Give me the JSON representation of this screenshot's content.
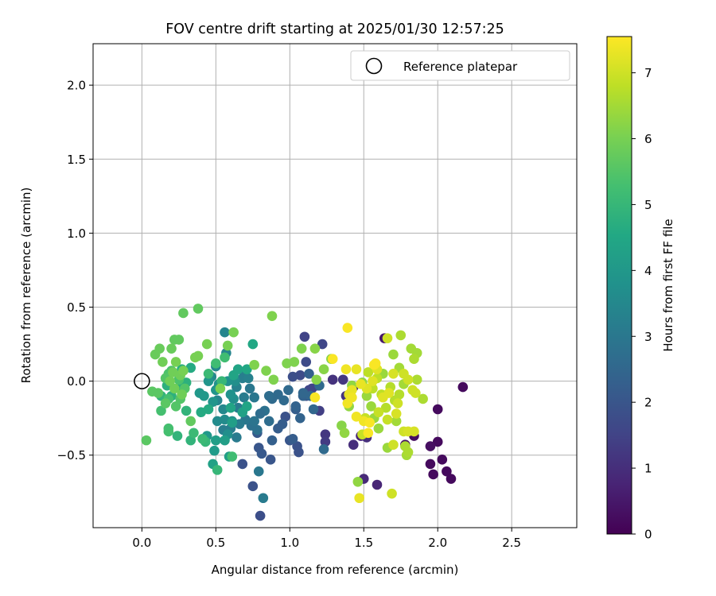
{
  "chart_data": {
    "type": "scatter",
    "title": "FOV centre drift starting at 2025/01/30 12:57:25",
    "xlabel": "Angular distance from reference (arcmin)",
    "ylabel": "Rotation from reference (arcmin)",
    "colorbar_label": "Hours from first FF file",
    "xlim": [
      -0.33,
      2.94
    ],
    "ylim": [
      -0.99,
      2.28
    ],
    "xticks": [
      0.0,
      0.5,
      1.0,
      1.5,
      2.0,
      2.5
    ],
    "xtick_labels": [
      "0.0",
      "0.5",
      "1.0",
      "1.5",
      "2.0",
      "2.5"
    ],
    "yticks": [
      -0.5,
      0.0,
      0.5,
      1.0,
      1.5,
      2.0
    ],
    "ytick_labels": [
      "−0.5",
      "0.0",
      "0.5",
      "1.0",
      "1.5",
      "2.0"
    ],
    "clim": [
      0,
      7.55
    ],
    "cticks": [
      0,
      1,
      2,
      3,
      4,
      5,
      6,
      7
    ],
    "ctick_labels": [
      "0",
      "1",
      "2",
      "3",
      "4",
      "5",
      "6",
      "7"
    ],
    "colormap": "viridis",
    "grid": true,
    "legend": {
      "position": "top-right",
      "label": "Reference platepar",
      "marker": "open-circle"
    },
    "reference_point": {
      "x": 0.0,
      "y": 0.0
    },
    "points": [
      [
        2.17,
        -0.04,
        0.2
      ],
      [
        2.0,
        -0.19,
        0.2
      ],
      [
        2.0,
        -0.41,
        0.2
      ],
      [
        1.95,
        -0.56,
        0.2
      ],
      [
        1.97,
        -0.63,
        0.2
      ],
      [
        2.03,
        -0.53,
        0.2
      ],
      [
        2.06,
        -0.61,
        0.2
      ],
      [
        2.09,
        -0.66,
        0.2
      ],
      [
        1.95,
        -0.44,
        0.3
      ],
      [
        1.84,
        -0.37,
        0.3
      ],
      [
        1.78,
        -0.43,
        0.4
      ],
      [
        1.64,
        0.29,
        0.5
      ],
      [
        1.5,
        -0.66,
        0.9
      ],
      [
        1.59,
        -0.7,
        0.8
      ],
      [
        1.48,
        -0.37,
        0.8
      ],
      [
        1.43,
        -0.43,
        1.0
      ],
      [
        1.38,
        -0.1,
        1.1
      ],
      [
        1.43,
        -0.04,
        1.0
      ],
      [
        1.52,
        -0.38,
        1.0
      ],
      [
        1.29,
        0.01,
        1.1
      ],
      [
        1.36,
        0.01,
        1.2
      ],
      [
        1.24,
        -0.36,
        1.2
      ],
      [
        1.24,
        -0.41,
        1.3
      ],
      [
        1.2,
        -0.2,
        1.4
      ],
      [
        1.15,
        -0.05,
        1.5
      ],
      [
        1.1,
        0.3,
        1.5
      ],
      [
        1.19,
        -0.03,
        1.5
      ],
      [
        1.22,
        0.25,
        1.6
      ],
      [
        1.11,
        0.13,
        1.7
      ],
      [
        1.13,
        -0.06,
        1.6
      ],
      [
        1.07,
        0.04,
        1.7
      ],
      [
        1.11,
        -0.1,
        1.8
      ],
      [
        1.06,
        -0.48,
        1.9
      ],
      [
        1.05,
        -0.44,
        1.9
      ],
      [
        1.0,
        -0.4,
        2.0
      ],
      [
        1.02,
        0.03,
        1.8
      ],
      [
        0.97,
        -0.24,
        1.9
      ],
      [
        0.8,
        -0.91,
        1.8
      ],
      [
        0.75,
        -0.71,
        1.9
      ],
      [
        0.68,
        -0.56,
        1.9
      ],
      [
        0.79,
        -0.45,
        2.0
      ],
      [
        0.78,
        -0.35,
        2.1
      ],
      [
        0.81,
        -0.49,
        2.1
      ],
      [
        0.87,
        -0.53,
        2.0
      ],
      [
        0.95,
        -0.29,
        2.2
      ],
      [
        0.92,
        -0.32,
        2.2
      ],
      [
        0.88,
        -0.4,
        2.3
      ],
      [
        1.02,
        -0.39,
        2.2
      ],
      [
        1.04,
        -0.19,
        2.2
      ],
      [
        1.07,
        -0.25,
        2.4
      ],
      [
        1.09,
        -0.1,
        2.4
      ],
      [
        1.16,
        -0.19,
        2.5
      ],
      [
        1.14,
        -0.1,
        2.5
      ],
      [
        1.04,
        -0.17,
        2.4
      ],
      [
        1.09,
        -0.08,
        2.5
      ],
      [
        1.13,
        0.05,
        2.3
      ],
      [
        1.23,
        -0.46,
        2.6
      ],
      [
        1.2,
        -0.03,
        2.6
      ],
      [
        0.99,
        -0.06,
        2.6
      ],
      [
        0.96,
        -0.13,
        2.6
      ],
      [
        0.92,
        -0.09,
        2.6
      ],
      [
        0.88,
        -0.12,
        2.6
      ],
      [
        0.86,
        -0.1,
        2.7
      ],
      [
        0.86,
        -0.27,
        2.7
      ],
      [
        0.83,
        -0.2,
        2.8
      ],
      [
        0.78,
        -0.33,
        2.8
      ],
      [
        0.8,
        -0.22,
        2.7
      ],
      [
        0.74,
        -0.3,
        2.8
      ],
      [
        0.79,
        -0.61,
        3.0
      ],
      [
        0.82,
        -0.79,
        3.1
      ],
      [
        0.76,
        -0.27,
        2.9
      ],
      [
        0.7,
        -0.26,
        3.0
      ],
      [
        0.76,
        -0.11,
        3.0
      ],
      [
        0.73,
        -0.05,
        3.0
      ],
      [
        0.69,
        -0.11,
        3.1
      ],
      [
        0.65,
        -0.18,
        3.1
      ],
      [
        0.66,
        -0.29,
        3.1
      ],
      [
        0.64,
        -0.38,
        3.1
      ],
      [
        0.6,
        -0.32,
        3.2
      ],
      [
        0.55,
        -0.33,
        3.2
      ],
      [
        0.68,
        0.02,
        3.2
      ],
      [
        0.69,
        0.06,
        3.2
      ],
      [
        0.72,
        0.02,
        3.3
      ],
      [
        0.64,
        -0.04,
        3.3
      ],
      [
        0.56,
        0.33,
        3.4
      ],
      [
        0.57,
        0.19,
        3.4
      ],
      [
        0.5,
        0.1,
        3.5
      ],
      [
        0.47,
        0.03,
        3.5
      ],
      [
        0.51,
        -0.13,
        3.4
      ],
      [
        0.55,
        -0.19,
        3.5
      ],
      [
        0.51,
        -0.27,
        3.6
      ],
      [
        0.56,
        -0.26,
        3.6
      ],
      [
        0.58,
        -0.36,
        3.7
      ],
      [
        0.61,
        -0.27,
        3.7
      ],
      [
        0.62,
        -0.12,
        3.7
      ],
      [
        0.63,
        0.0,
        3.7
      ],
      [
        0.58,
        0.0,
        3.8
      ],
      [
        0.6,
        -0.09,
        3.8
      ],
      [
        0.52,
        -0.02,
        3.8
      ],
      [
        0.45,
        0.0,
        3.9
      ],
      [
        0.5,
        -0.06,
        3.9
      ],
      [
        0.48,
        -0.14,
        3.9
      ],
      [
        0.42,
        -0.1,
        4.0
      ],
      [
        0.39,
        -0.08,
        4.0
      ],
      [
        0.44,
        -0.37,
        4.0
      ],
      [
        0.49,
        -0.47,
        4.1
      ],
      [
        0.5,
        -0.4,
        4.2
      ],
      [
        0.59,
        -0.51,
        4.2
      ],
      [
        0.48,
        -0.56,
        4.3
      ],
      [
        0.56,
        -0.4,
        4.2
      ],
      [
        0.61,
        -0.28,
        4.2
      ],
      [
        0.68,
        -0.21,
        4.3
      ],
      [
        0.71,
        -0.17,
        4.4
      ],
      [
        0.6,
        -0.18,
        4.4
      ],
      [
        0.62,
        0.04,
        4.4
      ],
      [
        0.65,
        0.08,
        4.4
      ],
      [
        0.71,
        0.08,
        4.5
      ],
      [
        0.75,
        0.25,
        4.5
      ],
      [
        0.45,
        -0.19,
        4.6
      ],
      [
        0.4,
        -0.21,
        4.6
      ],
      [
        0.33,
        0.09,
        4.6
      ],
      [
        0.27,
        0.08,
        4.7
      ],
      [
        0.17,
        -0.03,
        4.8
      ],
      [
        0.3,
        -0.01,
        4.8
      ],
      [
        0.26,
        -0.03,
        4.8
      ],
      [
        0.2,
        -0.1,
        4.8
      ],
      [
        0.13,
        -0.1,
        4.9
      ],
      [
        0.3,
        -0.2,
        4.9
      ],
      [
        0.24,
        -0.37,
        4.9
      ],
      [
        0.33,
        -0.4,
        4.9
      ],
      [
        0.43,
        -0.41,
        5.0
      ],
      [
        0.51,
        -0.6,
        5.0
      ],
      [
        0.54,
        0.0,
        5.0
      ],
      [
        0.35,
        -0.35,
        5.1
      ],
      [
        0.41,
        -0.39,
        5.1
      ],
      [
        0.45,
        0.05,
        5.1
      ],
      [
        0.5,
        0.12,
        5.2
      ],
      [
        0.56,
        0.16,
        5.2
      ],
      [
        0.61,
        -0.51,
        5.2
      ],
      [
        0.18,
        -0.12,
        5.3
      ],
      [
        0.13,
        -0.2,
        5.3
      ],
      [
        0.18,
        -0.34,
        5.3
      ],
      [
        0.18,
        -0.32,
        5.3
      ],
      [
        0.18,
        0.05,
        5.4
      ],
      [
        0.2,
        0.07,
        5.4
      ],
      [
        0.25,
        0.01,
        5.4
      ],
      [
        0.29,
        -0.05,
        5.5
      ],
      [
        0.26,
        -0.12,
        5.5
      ],
      [
        0.23,
        -0.17,
        5.5
      ],
      [
        0.16,
        0.02,
        5.5
      ],
      [
        0.11,
        -0.08,
        5.6
      ],
      [
        0.16,
        -0.15,
        5.6
      ],
      [
        0.07,
        -0.07,
        5.6
      ],
      [
        0.03,
        -0.4,
        5.6
      ],
      [
        0.33,
        -0.27,
        5.7
      ],
      [
        0.28,
        0.46,
        5.7
      ],
      [
        0.38,
        0.49,
        5.7
      ],
      [
        0.25,
        0.28,
        5.7
      ],
      [
        0.22,
        0.28,
        5.7
      ],
      [
        0.2,
        0.22,
        5.8
      ],
      [
        0.12,
        0.22,
        5.8
      ],
      [
        0.09,
        0.18,
        5.8
      ],
      [
        0.14,
        0.13,
        5.9
      ],
      [
        0.21,
        0.06,
        5.9
      ],
      [
        0.19,
        0.0,
        5.9
      ],
      [
        0.26,
        0.04,
        5.9
      ],
      [
        0.27,
        -0.09,
        5.9
      ],
      [
        0.22,
        -0.05,
        5.9
      ],
      [
        0.23,
        0.13,
        6.0
      ],
      [
        0.28,
        0.07,
        6.0
      ],
      [
        0.36,
        0.16,
        6.0
      ],
      [
        0.38,
        0.17,
        6.0
      ],
      [
        0.44,
        0.25,
        6.0
      ],
      [
        0.53,
        -0.05,
        6.0
      ],
      [
        0.58,
        0.24,
        6.0
      ],
      [
        0.62,
        0.33,
        6.0
      ],
      [
        0.76,
        0.11,
        6.1
      ],
      [
        0.84,
        0.07,
        6.1
      ],
      [
        0.88,
        0.44,
        6.1
      ],
      [
        0.89,
        0.01,
        6.1
      ],
      [
        0.98,
        0.12,
        6.1
      ],
      [
        1.03,
        0.13,
        6.1
      ],
      [
        1.08,
        0.22,
        6.1
      ],
      [
        1.17,
        0.22,
        6.2
      ],
      [
        1.18,
        0.01,
        6.2
      ],
      [
        1.23,
        0.08,
        6.2
      ],
      [
        1.28,
        0.15,
        6.2
      ],
      [
        1.35,
        -0.3,
        6.2
      ],
      [
        1.37,
        -0.35,
        6.3
      ],
      [
        1.4,
        -0.17,
        6.3
      ],
      [
        1.42,
        -0.03,
        6.3
      ],
      [
        1.49,
        -0.01,
        6.3
      ],
      [
        1.46,
        -0.68,
        6.3
      ],
      [
        1.52,
        -0.1,
        6.4
      ],
      [
        1.55,
        -0.17,
        6.4
      ],
      [
        1.57,
        -0.25,
        6.4
      ],
      [
        1.6,
        -0.32,
        6.4
      ],
      [
        1.63,
        0.05,
        6.4
      ],
      [
        1.66,
        -0.45,
        6.4
      ],
      [
        1.7,
        0.18,
        6.4
      ],
      [
        1.72,
        -0.27,
        6.5
      ],
      [
        1.74,
        0.09,
        6.5
      ],
      [
        1.77,
        -0.02,
        6.5
      ],
      [
        1.79,
        -0.5,
        6.5
      ],
      [
        1.82,
        0.22,
        6.5
      ],
      [
        1.86,
        0.19,
        6.5
      ],
      [
        1.9,
        -0.12,
        6.6
      ],
      [
        1.75,
        0.31,
        6.6
      ],
      [
        1.78,
        -0.44,
        6.6
      ],
      [
        1.8,
        -0.48,
        6.6
      ],
      [
        1.84,
        0.15,
        6.6
      ],
      [
        1.86,
        0.01,
        6.6
      ],
      [
        1.74,
        -0.09,
        6.7
      ],
      [
        1.71,
        -0.13,
        6.7
      ],
      [
        1.68,
        -0.04,
        6.7
      ],
      [
        1.65,
        -0.18,
        6.7
      ],
      [
        1.62,
        -0.09,
        6.8
      ],
      [
        1.59,
        0.02,
        6.8
      ],
      [
        1.56,
        -0.05,
        6.8
      ],
      [
        1.53,
        0.06,
        6.8
      ],
      [
        1.51,
        -0.25,
        6.9
      ],
      [
        1.49,
        -0.36,
        6.9
      ],
      [
        1.6,
        -0.21,
        6.9
      ],
      [
        1.66,
        -0.26,
        6.9
      ],
      [
        1.7,
        -0.43,
        7.0
      ],
      [
        1.73,
        -0.15,
        7.0
      ],
      [
        1.77,
        0.05,
        7.0
      ],
      [
        1.8,
        0.01,
        7.0
      ],
      [
        1.83,
        -0.06,
        7.0
      ],
      [
        1.85,
        -0.08,
        7.0
      ],
      [
        1.66,
        0.29,
        7.0
      ],
      [
        1.69,
        -0.76,
        7.0
      ],
      [
        1.77,
        -0.34,
        7.0
      ],
      [
        1.8,
        -0.34,
        7.1
      ],
      [
        1.84,
        -0.34,
        7.1
      ],
      [
        1.72,
        -0.22,
        7.1
      ],
      [
        1.7,
        0.05,
        7.1
      ],
      [
        1.67,
        -0.08,
        7.2
      ],
      [
        1.63,
        -0.11,
        7.2
      ],
      [
        1.59,
        0.08,
        7.2
      ],
      [
        1.56,
        0.0,
        7.2
      ],
      [
        1.52,
        -0.05,
        7.2
      ],
      [
        1.48,
        -0.02,
        7.3
      ],
      [
        1.45,
        0.08,
        7.3
      ],
      [
        1.42,
        -0.06,
        7.3
      ],
      [
        1.4,
        -0.09,
        7.3
      ],
      [
        1.47,
        -0.79,
        7.3
      ],
      [
        1.38,
        0.08,
        7.4
      ],
      [
        1.39,
        -0.15,
        7.4
      ],
      [
        1.42,
        -0.11,
        7.4
      ],
      [
        1.45,
        -0.24,
        7.4
      ],
      [
        1.5,
        -0.27,
        7.4
      ],
      [
        1.53,
        -0.35,
        7.5
      ],
      [
        1.54,
        -0.28,
        7.5
      ],
      [
        1.57,
        0.11,
        7.5
      ],
      [
        1.58,
        0.12,
        7.5
      ],
      [
        1.39,
        0.36,
        7.5
      ],
      [
        1.29,
        0.15,
        7.5
      ],
      [
        1.17,
        -0.11,
        7.5
      ]
    ]
  }
}
